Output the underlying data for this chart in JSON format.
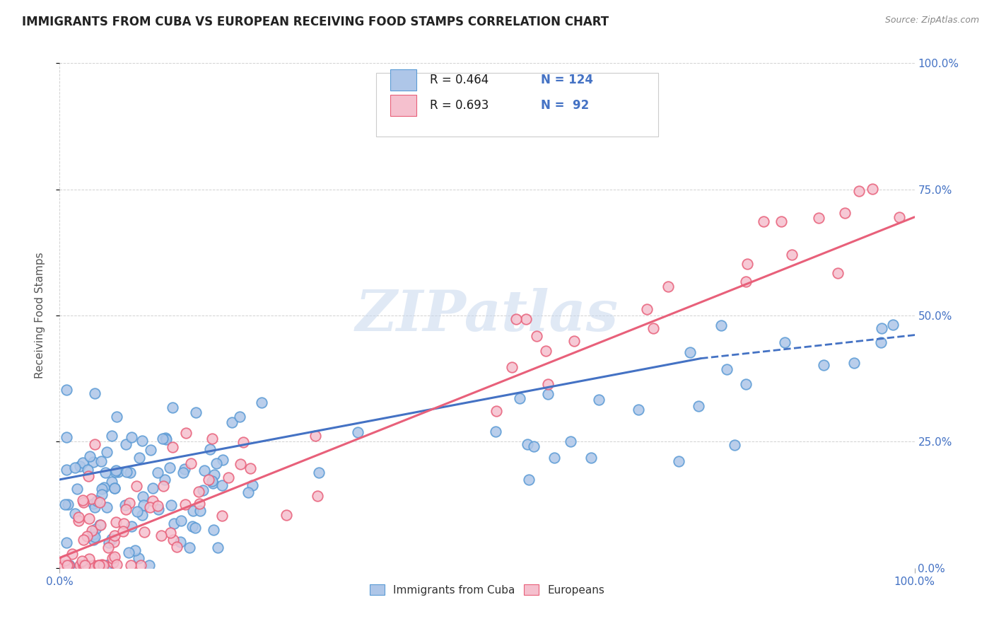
{
  "title": "IMMIGRANTS FROM CUBA VS EUROPEAN RECEIVING FOOD STAMPS CORRELATION CHART",
  "source": "Source: ZipAtlas.com",
  "ylabel": "Receiving Food Stamps",
  "xlim": [
    0,
    1.0
  ],
  "ylim": [
    0,
    1.0
  ],
  "xtick_positions": [
    0.0,
    1.0
  ],
  "xtick_labels": [
    "0.0%",
    "100.0%"
  ],
  "ytick_vals": [
    0.0,
    0.25,
    0.5,
    0.75,
    1.0
  ],
  "ytick_labels": [
    "0.0%",
    "25.0%",
    "50.0%",
    "75.0%",
    "100.0%"
  ],
  "legend_label1": "Immigrants from Cuba",
  "legend_label2": "Europeans",
  "color_cuba_face": "#aec6e8",
  "color_cuba_edge": "#5b9bd5",
  "color_europe_face": "#f5c0ce",
  "color_europe_edge": "#e8607a",
  "color_cuba_line": "#4472c4",
  "color_europe_line": "#e8607a",
  "watermark_text": "ZIPatlas",
  "background_color": "#ffffff",
  "title_fontsize": 12,
  "tick_color": "#4472c4",
  "legend_text_color": "#4472c4",
  "legend_r_color": "#1a1a1a"
}
